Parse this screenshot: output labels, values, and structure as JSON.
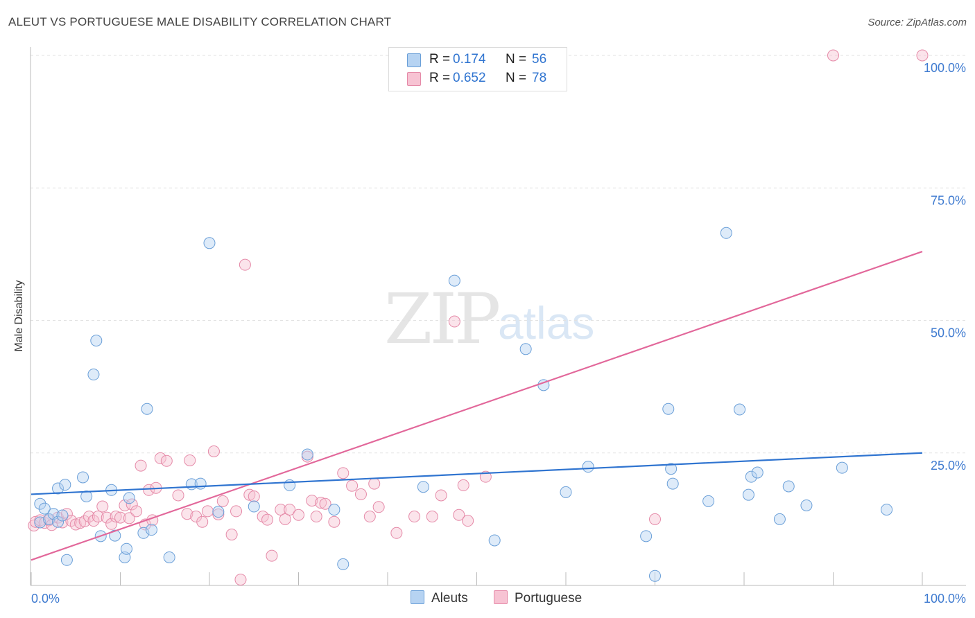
{
  "title": "ALEUT VS PORTUGUESE MALE DISABILITY CORRELATION CHART",
  "source": "Source: ZipAtlas.com",
  "watermark": {
    "part1": "ZIP",
    "part2": "atlas"
  },
  "legend_top": [
    {
      "r_label": "R =",
      "r_value": "0.174",
      "n_label": "N =",
      "n_value": "56"
    },
    {
      "r_label": "R =",
      "r_value": "0.652",
      "n_label": "N =",
      "n_value": "78"
    }
  ],
  "legend_bottom": [
    "Aleuts",
    "Portuguese"
  ],
  "colors": {
    "aleut_fill": "#b6d3f2",
    "aleut_stroke": "#6a9fd8",
    "aleut_line": "#2f74d0",
    "port_fill": "#f7c3d3",
    "port_stroke": "#e58aa8",
    "port_line": "#e2679a",
    "tick_text": "#3f7bd0"
  },
  "chart_data": {
    "type": "scatter",
    "title": "ALEUT VS PORTUGUESE MALE DISABILITY CORRELATION CHART",
    "xlabel": "",
    "ylabel": "Male Disability",
    "xlim": [
      0,
      100
    ],
    "ylim": [
      0,
      100
    ],
    "x_tick_labels": [
      "0.0%",
      "100.0%"
    ],
    "y_tick_labels": [
      "25.0%",
      "50.0%",
      "75.0%",
      "100.0%"
    ],
    "y_tick_values": [
      25,
      50,
      75,
      100
    ],
    "grid": true,
    "series": [
      {
        "name": "Aleuts",
        "r": 0.174,
        "n": 56,
        "trend": {
          "x": [
            0,
            100
          ],
          "y": [
            17.2,
            25.0
          ]
        },
        "points": [
          [
            1,
            11.9
          ],
          [
            1,
            15.4
          ],
          [
            1.5,
            14.5
          ],
          [
            2,
            12.5
          ],
          [
            2.5,
            13.5
          ],
          [
            3,
            12
          ],
          [
            4,
            4.8
          ],
          [
            3,
            18.3
          ],
          [
            3.8,
            19
          ],
          [
            3.5,
            13.2
          ],
          [
            5.8,
            20.4
          ],
          [
            6.2,
            16.8
          ],
          [
            7,
            39.8
          ],
          [
            7.3,
            46.2
          ],
          [
            7.8,
            9.3
          ],
          [
            9,
            18
          ],
          [
            9.4,
            9.4
          ],
          [
            10.5,
            5.3
          ],
          [
            10.7,
            6.9
          ],
          [
            11,
            16.5
          ],
          [
            12.6,
            9.9
          ],
          [
            13,
            33.3
          ],
          [
            13.5,
            10.5
          ],
          [
            15.5,
            5.3
          ],
          [
            18,
            19.1
          ],
          [
            19,
            19.2
          ],
          [
            20,
            64.6
          ],
          [
            21,
            13.9
          ],
          [
            25,
            14.9
          ],
          [
            29,
            18.9
          ],
          [
            31,
            24.7
          ],
          [
            34,
            14.3
          ],
          [
            35,
            4
          ],
          [
            44,
            18.6
          ],
          [
            47.5,
            57.5
          ],
          [
            52,
            8.5
          ],
          [
            55.5,
            44.6
          ],
          [
            57.5,
            37.8
          ],
          [
            60,
            17.6
          ],
          [
            62.5,
            22.4
          ],
          [
            69,
            9.3
          ],
          [
            70,
            1.8
          ],
          [
            71.5,
            33.3
          ],
          [
            71.8,
            22
          ],
          [
            72,
            19.2
          ],
          [
            76,
            15.9
          ],
          [
            78,
            66.5
          ],
          [
            79.5,
            33.2
          ],
          [
            80.5,
            17.1
          ],
          [
            80.8,
            20.5
          ],
          [
            81.5,
            21.3
          ],
          [
            84,
            12.5
          ],
          [
            85,
            18.7
          ],
          [
            87,
            15.1
          ],
          [
            91,
            22.2
          ],
          [
            96,
            14.3
          ]
        ]
      },
      {
        "name": "Portuguese",
        "r": 0.652,
        "n": 78,
        "trend": {
          "x": [
            0,
            100
          ],
          "y": [
            4.8,
            63.0
          ]
        },
        "points": [
          [
            0.3,
            11.3
          ],
          [
            0.5,
            12
          ],
          [
            1,
            12.3
          ],
          [
            1.5,
            11.8
          ],
          [
            2,
            12.3
          ],
          [
            2.3,
            11.4
          ],
          [
            3,
            12.8
          ],
          [
            3.5,
            11.9
          ],
          [
            4,
            13.5
          ],
          [
            4.5,
            12.2
          ],
          [
            5,
            11.5
          ],
          [
            5.5,
            11.8
          ],
          [
            6,
            12.1
          ],
          [
            6.5,
            13
          ],
          [
            7,
            12.2
          ],
          [
            7.5,
            13
          ],
          [
            8,
            14.9
          ],
          [
            8.5,
            12.8
          ],
          [
            9,
            11.6
          ],
          [
            9.5,
            13
          ],
          [
            10,
            12.8
          ],
          [
            10.5,
            15.1
          ],
          [
            11,
            12.7
          ],
          [
            11.3,
            15.3
          ],
          [
            11.8,
            14
          ],
          [
            12.3,
            22.6
          ],
          [
            12.8,
            11.5
          ],
          [
            13.2,
            18
          ],
          [
            13.6,
            12.3
          ],
          [
            14,
            18.4
          ],
          [
            14.5,
            24
          ],
          [
            15.2,
            23.5
          ],
          [
            16.5,
            17
          ],
          [
            17.5,
            13.5
          ],
          [
            17.8,
            23.6
          ],
          [
            18.5,
            13
          ],
          [
            19.2,
            12
          ],
          [
            19.8,
            14
          ],
          [
            20.5,
            25.3
          ],
          [
            21,
            13.4
          ],
          [
            21.5,
            15.9
          ],
          [
            22.5,
            9.6
          ],
          [
            23,
            14
          ],
          [
            23.5,
            1.1
          ],
          [
            24,
            60.5
          ],
          [
            24.5,
            17.1
          ],
          [
            25,
            16.8
          ],
          [
            26,
            13
          ],
          [
            26.5,
            12.4
          ],
          [
            27,
            5.6
          ],
          [
            28,
            14.3
          ],
          [
            28.5,
            12.5
          ],
          [
            29,
            14.3
          ],
          [
            30,
            13.3
          ],
          [
            31,
            24.3
          ],
          [
            31.5,
            16
          ],
          [
            32,
            13
          ],
          [
            32.5,
            15.6
          ],
          [
            33,
            15.4
          ],
          [
            34,
            12
          ],
          [
            35,
            21.2
          ],
          [
            36,
            18.8
          ],
          [
            37,
            17.2
          ],
          [
            38,
            13
          ],
          [
            38.5,
            19.2
          ],
          [
            39,
            14.8
          ],
          [
            41,
            9.9
          ],
          [
            43,
            13
          ],
          [
            45,
            13
          ],
          [
            46,
            17
          ],
          [
            47.5,
            49.8
          ],
          [
            48,
            13.3
          ],
          [
            48.5,
            18.9
          ],
          [
            49,
            12.2
          ],
          [
            51,
            20.5
          ],
          [
            70,
            12.5
          ],
          [
            90,
            100
          ],
          [
            100,
            100
          ]
        ]
      }
    ]
  }
}
